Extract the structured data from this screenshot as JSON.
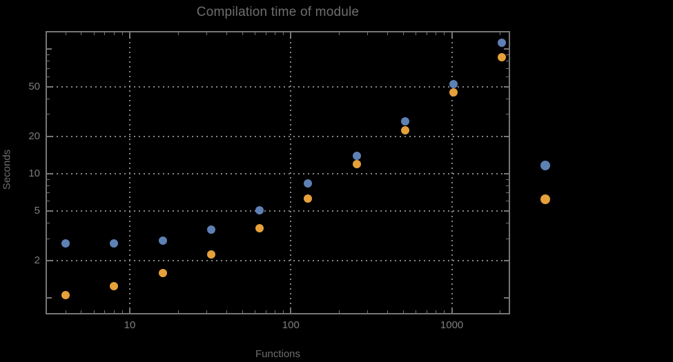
{
  "chart_data": {
    "type": "scatter",
    "title": "Compilation time of module",
    "xscale": "log",
    "yscale": "log",
    "xlim": [
      3,
      2300
    ],
    "ylim": [
      0.74,
      140
    ],
    "grid": "dotted",
    "x": [
      4,
      8,
      16,
      32,
      64,
      128,
      256,
      512,
      1024,
      2048
    ],
    "series": [
      {
        "name": "blue",
        "color": "#5e81b5",
        "values": [
          2.76,
          2.75,
          2.88,
          3.55,
          5.1,
          8.3,
          14,
          26.2,
          52.4,
          113
        ]
      },
      {
        "name": "orange",
        "color": "#e6a13b",
        "values": [
          1.06,
          1.25,
          1.59,
          2.24,
          3.65,
          6.3,
          11.9,
          22.3,
          44.9,
          86
        ]
      }
    ],
    "x_axis": {
      "label": "Functions",
      "ticks": [
        {
          "v": 10,
          "label": "10"
        },
        {
          "v": 100,
          "label": "100"
        },
        {
          "v": 1000,
          "label": "1000"
        }
      ],
      "minor_ticks": [
        4,
        5,
        6,
        7,
        8,
        9,
        20,
        30,
        40,
        50,
        60,
        70,
        80,
        90,
        200,
        300,
        400,
        500,
        600,
        700,
        800,
        900,
        2000
      ]
    },
    "y_axis": {
      "label": "Seconds",
      "ticks": [
        {
          "v": 2,
          "label": "2"
        },
        {
          "v": 5,
          "label": "5"
        },
        {
          "v": 10,
          "label": "10"
        },
        {
          "v": 20,
          "label": "20"
        },
        {
          "v": 50,
          "label": "50"
        }
      ],
      "unlabeled_major_ticks": [
        1,
        100
      ],
      "minor_ticks": [
        3,
        4,
        6,
        7,
        8,
        9,
        30,
        40,
        60,
        70,
        80,
        90
      ]
    },
    "legend": {
      "position": "right-outside",
      "labels_visible": false,
      "items": [
        {
          "series": "blue",
          "color": "#5e81b5"
        },
        {
          "series": "orange",
          "color": "#e6a13b"
        }
      ]
    }
  },
  "colors": {
    "background": "#000000",
    "title": "#6e6e6e",
    "axis_label": "#6e6e6e",
    "tick_label": "#7e7e7e",
    "frame": "#767676",
    "grid": "#878787"
  }
}
